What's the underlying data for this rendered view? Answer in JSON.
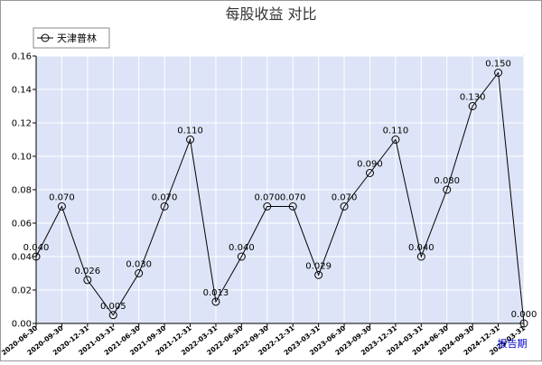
{
  "chart_data": {
    "type": "line",
    "title": "每股收益  对比",
    "unit_label": "报告期",
    "ylim": [
      0,
      0.16
    ],
    "yticks": [
      "0.00",
      "0.02",
      "0.04",
      "0.06",
      "0.08",
      "0.10",
      "0.12",
      "0.14",
      "0.16"
    ],
    "grid": true,
    "legend_position": "top-left",
    "colors": {
      "plot_bg": "#dde4f7",
      "grid": "#ffffff",
      "line": "#000000",
      "frame": "#999999"
    },
    "categories": [
      "2020-06-30",
      "2020-09-30",
      "2020-12-31",
      "2021-03-31",
      "2021-06-30",
      "2021-09-30",
      "2021-12-31",
      "2022-03-31",
      "2022-06-30",
      "2022-09-30",
      "2022-12-31",
      "2023-03-31",
      "2023-06-30",
      "2023-09-30",
      "2023-12-31",
      "2024-03-31",
      "2024-06-30",
      "2024-09-30",
      "2024-12-31",
      "2025-03-31"
    ],
    "series": [
      {
        "name": "天津普林",
        "values": [
          0.04,
          0.07,
          0.026,
          0.005,
          0.03,
          0.07,
          0.11,
          0.013,
          0.04,
          0.07,
          0.07,
          0.029,
          0.07,
          0.09,
          0.11,
          0.04,
          0.08,
          0.13,
          0.15,
          0.0
        ],
        "labels": [
          "0.040",
          "0.070",
          "0.026",
          "0.005",
          "0.030",
          "0.070",
          "0.110",
          "0.013",
          "0.040",
          "0.070",
          "0.070",
          "0.029",
          "0.070",
          "0.090",
          "0.110",
          "0.040",
          "0.080",
          "0.130",
          "0.150",
          "0.000"
        ]
      }
    ]
  }
}
